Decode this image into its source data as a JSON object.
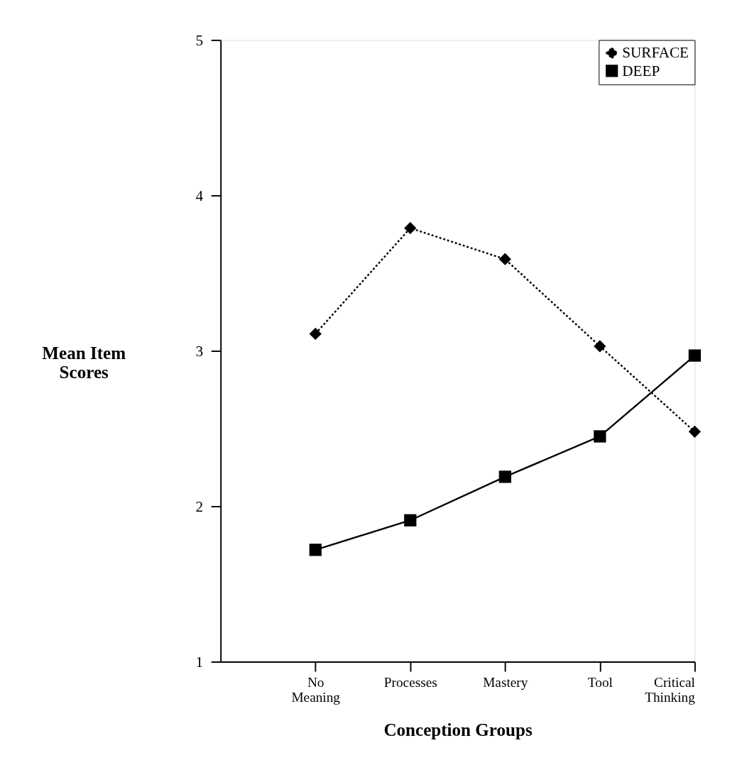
{
  "chart_data": {
    "type": "line",
    "xlabel": "Conception Groups",
    "ylabel": "Mean Item Scores",
    "categories": [
      "No Meaning",
      "Processes",
      "Mastery",
      "Tool",
      "Critical Thinking"
    ],
    "series": [
      {
        "name": "SURFACE",
        "color": "#000000",
        "marker": "diamond",
        "line_style": "dotted",
        "values": [
          3.11,
          3.79,
          3.59,
          3.03,
          2.48
        ]
      },
      {
        "name": "DEEP",
        "color": "#000000",
        "marker": "square",
        "line_style": "solid",
        "values": [
          1.72,
          1.91,
          2.19,
          2.45,
          2.97
        ]
      }
    ],
    "ylim": [
      1,
      5
    ],
    "yticks": [
      1,
      2,
      3,
      4,
      5
    ],
    "grid": false,
    "legend": "top right"
  }
}
